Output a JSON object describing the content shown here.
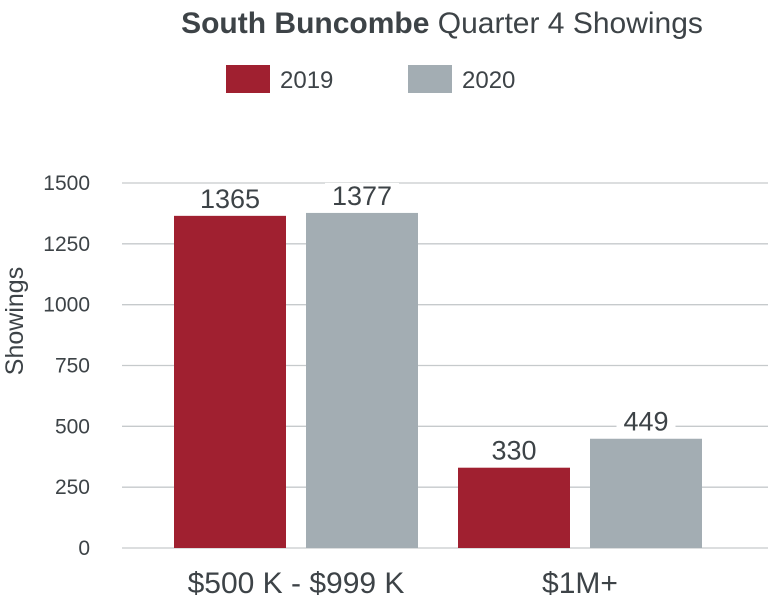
{
  "chart_data": {
    "type": "bar",
    "title_bold": "South Buncombe",
    "title_rest": " Quarter 4 Showings",
    "xlabel": "",
    "ylabel": "Showings",
    "ylim": [
      0,
      1500
    ],
    "yticks": [
      0,
      250,
      500,
      750,
      1000,
      1250,
      1500
    ],
    "categories": [
      "$500 K - $999 K",
      "$1M+"
    ],
    "series": [
      {
        "name": "2019",
        "color": "#a02030",
        "values": [
          1365,
          330
        ]
      },
      {
        "name": "2020",
        "color": "#a3adb3",
        "values": [
          1377,
          449
        ]
      }
    ],
    "grid": true,
    "legend_position": "top-center"
  }
}
